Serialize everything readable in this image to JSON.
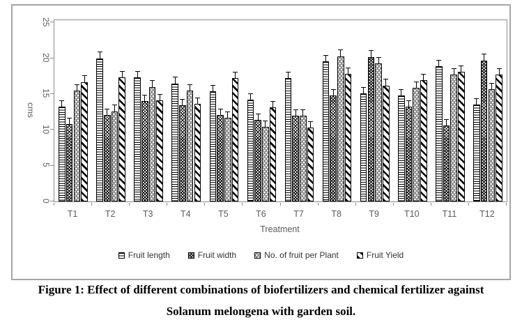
{
  "figure": {
    "caption_line1": "Figure 1: Effect of different combinations of biofertilizers and chemical fertilizer against",
    "caption_line2": "Solanum melongena with garden soil."
  },
  "chart_data": {
    "type": "bar",
    "title": "",
    "xlabel": "Treatment",
    "ylabel": "cms",
    "ylim": [
      0,
      25
    ],
    "yticks": [
      0,
      5,
      10,
      15,
      20,
      25
    ],
    "grid": false,
    "legend_position": "bottom",
    "error_bar_value": 0.8,
    "categories": [
      "T1",
      "T2",
      "T3",
      "T4",
      "T5",
      "T6",
      "T7",
      "T8",
      "T9",
      "T10",
      "T11",
      "T12"
    ],
    "series": [
      {
        "name": "Fruit length",
        "pattern": "horizontal-stripes",
        "values": [
          13.2,
          20.0,
          17.3,
          16.5,
          15.4,
          14.2,
          17.2,
          19.6,
          15.1,
          14.8,
          18.9,
          13.5
        ]
      },
      {
        "name": "Fruit width",
        "pattern": "diamond-crosshatch",
        "values": [
          10.8,
          12.1,
          14.0,
          13.4,
          12.1,
          11.4,
          12.0,
          14.8,
          20.2,
          13.2,
          10.6,
          19.7
        ]
      },
      {
        "name": "No. of fruit per Plant",
        "pattern": "gray-dots",
        "values": [
          15.5,
          12.6,
          16.0,
          15.5,
          11.7,
          10.4,
          12.0,
          20.3,
          19.3,
          15.9,
          17.7,
          15.7
        ]
      },
      {
        "name": "Fruit Yield",
        "pattern": "diagonal-stripes",
        "values": [
          16.7,
          17.3,
          14.1,
          13.6,
          17.2,
          13.1,
          10.3,
          17.8,
          16.2,
          16.9,
          18.1,
          17.7
        ]
      }
    ]
  },
  "colors": {
    "axis_line": "#8c8c8c",
    "tick_text": "#595959",
    "legend_text": "#333333",
    "outer_border": "#a6a6a6",
    "bar_outline": "#000000",
    "dot_series_fill": "#8f8f8f"
  }
}
